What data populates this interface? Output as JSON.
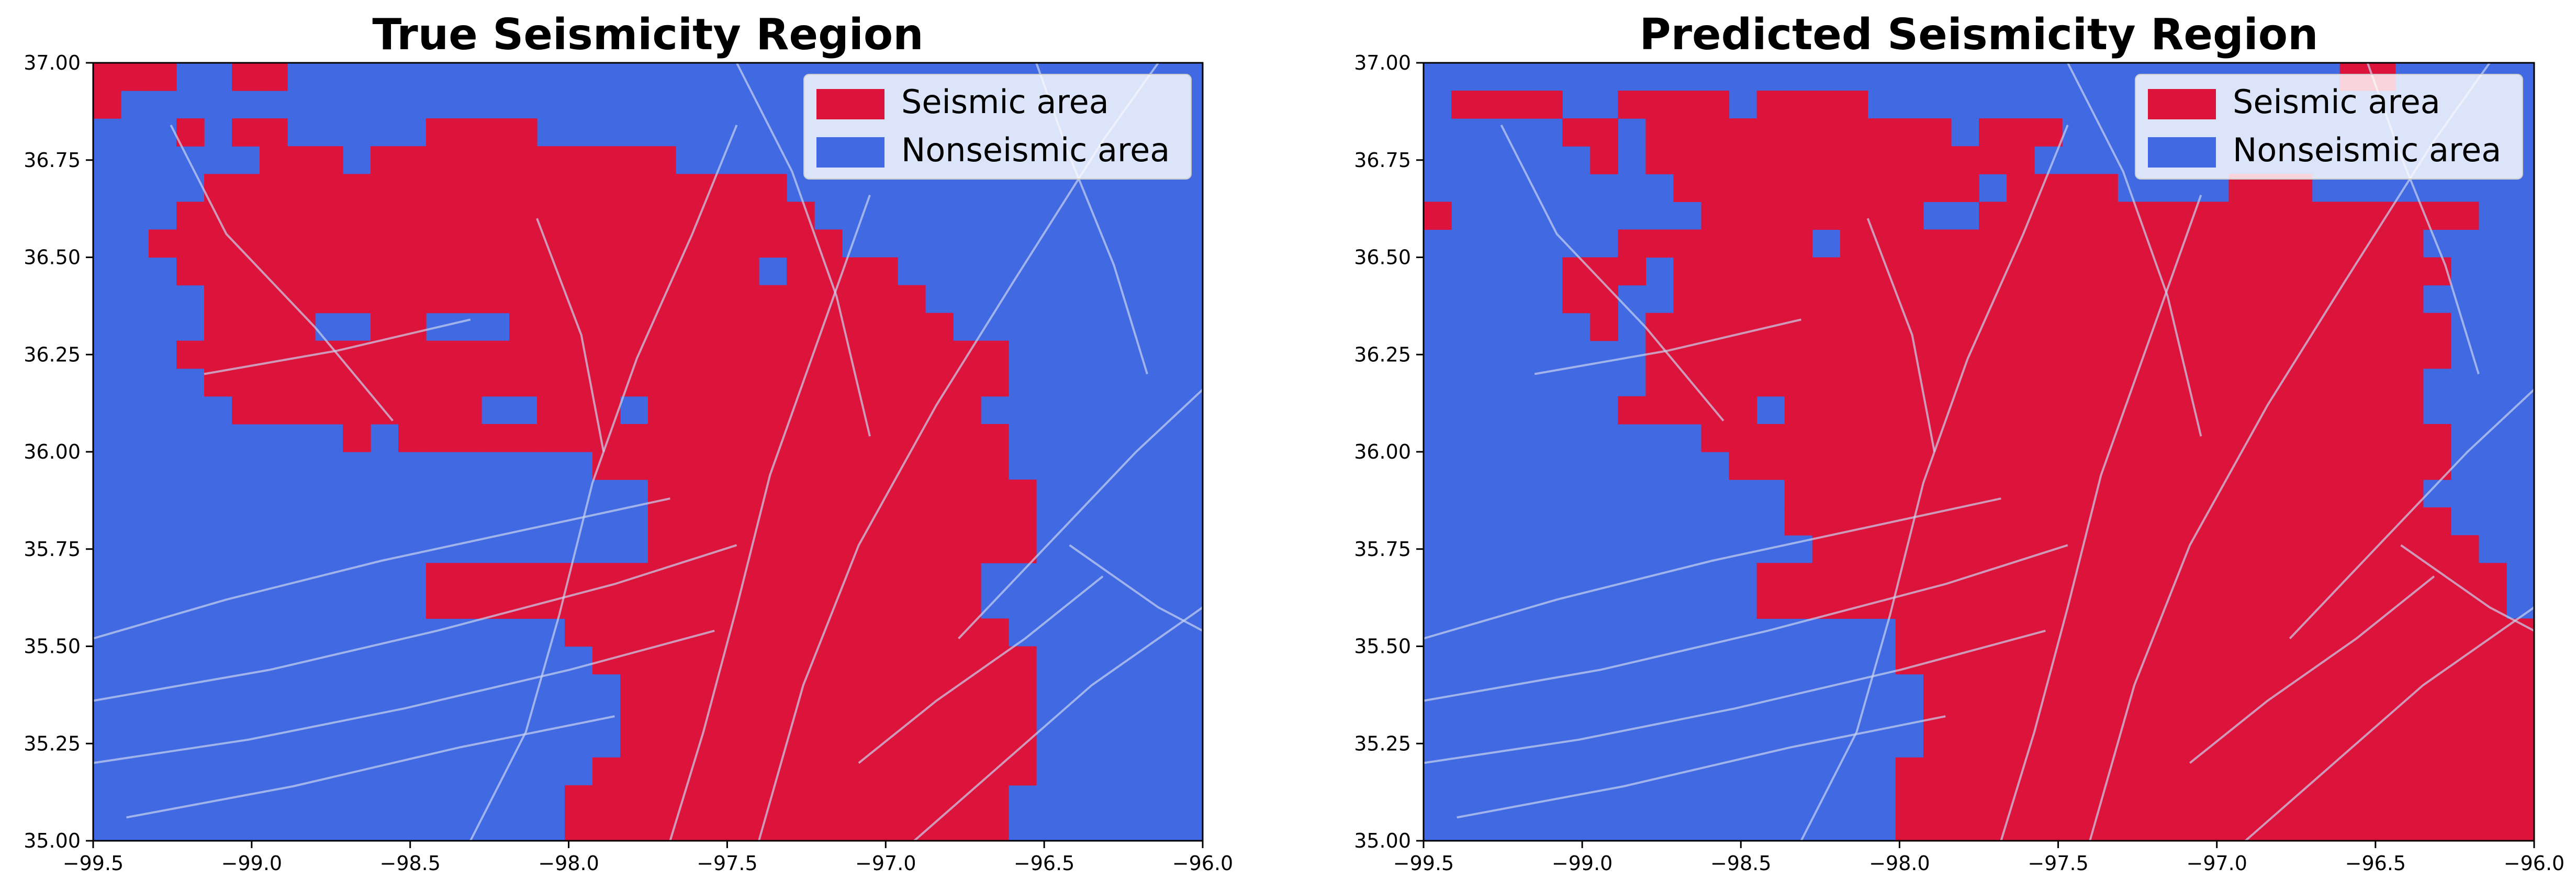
{
  "chart_data": [
    {
      "type": "heatmap",
      "title": "True Seismicity Region",
      "xlabel": "",
      "ylabel": "",
      "xlim": [
        -99.5,
        -96.0
      ],
      "ylim": [
        35.0,
        37.0
      ],
      "x_ticks": [
        "−99.5",
        "−99.0",
        "−98.5",
        "−98.0",
        "−97.5",
        "−97.0",
        "−96.5",
        "−96.0"
      ],
      "y_ticks": [
        "35.00",
        "35.25",
        "35.50",
        "35.75",
        "36.00",
        "36.25",
        "36.50",
        "36.75",
        "37.00"
      ],
      "legend": {
        "position": "top-right",
        "entries": [
          "Seismic area",
          "Nonseismic area"
        ]
      },
      "cell_size_deg": [
        0.0875,
        0.0714
      ],
      "grid_origin": [
        -99.5,
        35.0
      ],
      "rows_top_to_bottom": [
        "1110011000000000000000000000000000000000",
        "1000000000000000000000000000000000000000",
        "0001011000001111000000000000000000000000",
        "0000001110111111111110000000000000000000",
        "0000111111111111111111111000000000000000",
        "0001111111111111111111111100000000000000",
        "0011111111111111111111111110000000000000",
        "0001111111111111111111110111100000000000",
        "0000111111111111111111111111110000000000",
        "0000111100110001111111111111111000000000",
        "0001111111111111111111111111111110000000",
        "0000111111111111111111111111111110000000",
        "0000011111111100111011111111111100000000",
        "0000000001011111111111111111111110000000",
        "0000000000000000001111111111111110000000",
        "0000000000000000000011111111111111000000",
        "0000000000000000000011111111111111000000",
        "0000000000000000000011111111111111000000",
        "0000000000001111111111111111111100000000",
        "0000000000001111111111111111111100000000",
        "0000000000000000011111111111111110000000",
        "0000000000000000001111111111111111000000",
        "0000000000000000000111111111111111000000",
        "0000000000000000000111111111111111000000",
        "0000000000000000000111111111111111000000",
        "0000000000000000001111111111111111000000",
        "0000000000000000011111111111111110000000",
        "0000000000000000011111111111111110000000"
      ]
    },
    {
      "type": "heatmap",
      "title": "Predicted Seismicity Region",
      "xlabel": "",
      "ylabel": "",
      "xlim": [
        -99.5,
        -96.0
      ],
      "ylim": [
        35.0,
        37.0
      ],
      "x_ticks": [
        "−99.5",
        "−99.0",
        "−98.5",
        "−98.0",
        "−97.5",
        "−97.0",
        "−96.5",
        "−96.0"
      ],
      "y_ticks": [
        "35.00",
        "35.25",
        "35.50",
        "35.75",
        "36.00",
        "36.25",
        "36.50",
        "36.75",
        "37.00"
      ],
      "legend": {
        "position": "top-right",
        "entries": [
          "Seismic area",
          "Nonseismic area"
        ]
      },
      "cell_size_deg": [
        0.0875,
        0.0714
      ],
      "grid_origin": [
        -99.5,
        35.0
      ],
      "rows_top_to_bottom": [
        "0000000000000000000000000000000001100000",
        "0111100111101111000000000000000000000000",
        "0000011011111111111011100000000000000000",
        "0000001011111111111111000000000000000000",
        "0000000001111111111101111000011100000000",
        "1000000000111111110011111111111111111100",
        "0000000111111101111111111111111111110000",
        "0000011101111111111111111111111111111000",
        "0000011001111111111111111111111111110000",
        "0000001011111111111111111111111111111000",
        "0000000011111111111111111111111111111000",
        "0000000011111111111111111111111111110000",
        "0000000111110111111111111111111111110000",
        "0000000000111111111111111111111111111000",
        "0000000000011111111111111111111111111000",
        "0000000000000111111111111111111111110000",
        "0000000000000111111111111111111111111000",
        "0000000000000011111111111111111111111100",
        "0000000000001111111111111111111111111110",
        "0000000000001111111111111111111111111110",
        "0000000000000000011111111111111111111111",
        "0000000000000000011111111111111111111111",
        "0000000000000000001111111111111111111111",
        "0000000000000000001111111111111111111111",
        "0000000000000000001111111111111111111111",
        "0000000000000000011111111111111111111111",
        "0000000000000000011111111111111111111111",
        "0000000000000000011111111111111111111111"
      ]
    }
  ],
  "colors": {
    "seismic": "#DC143C",
    "nonseismic": "#4169E1",
    "faults": "#C9D3F0",
    "axis": "#000000"
  }
}
